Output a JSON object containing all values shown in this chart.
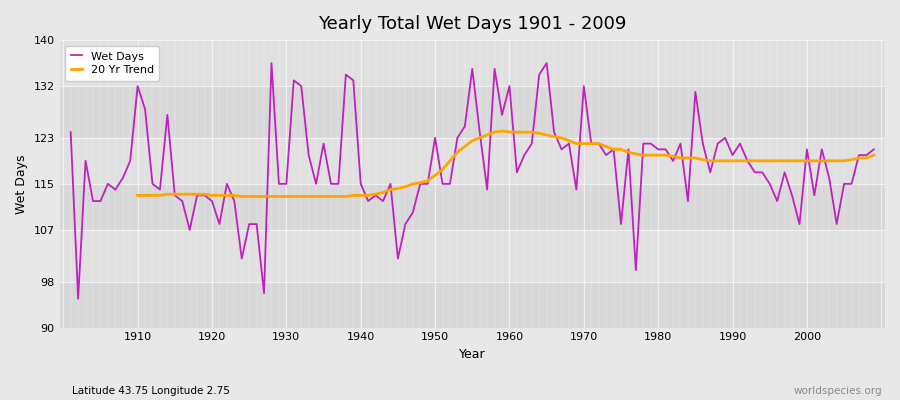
{
  "title": "Yearly Total Wet Days 1901 - 2009",
  "xlabel": "Year",
  "ylabel": "Wet Days",
  "subtitle": "Latitude 43.75 Longitude 2.75",
  "watermark": "worldspecies.org",
  "ylim": [
    90,
    140
  ],
  "yticks": [
    90,
    98,
    107,
    115,
    123,
    132,
    140
  ],
  "start_year": 1901,
  "wet_days_color": "#c020c0",
  "trend_color": "#FFA500",
  "bg_color": "#e8e8e8",
  "plot_bg_color": "#d8d8d8",
  "band_colors": [
    "#d8d8d8",
    "#e0e0e0"
  ],
  "wet_days": [
    124,
    95,
    119,
    112,
    112,
    115,
    114,
    116,
    119,
    132,
    128,
    115,
    114,
    127,
    113,
    112,
    107,
    113,
    113,
    112,
    108,
    115,
    112,
    102,
    108,
    108,
    96,
    136,
    115,
    115,
    133,
    132,
    120,
    115,
    122,
    115,
    115,
    134,
    133,
    115,
    112,
    113,
    112,
    115,
    102,
    108,
    110,
    115,
    115,
    123,
    115,
    115,
    123,
    125,
    135,
    124,
    114,
    135,
    127,
    132,
    117,
    120,
    122,
    134,
    136,
    124,
    121,
    122,
    114,
    132,
    122,
    122,
    120,
    121,
    108,
    121,
    100,
    122,
    122,
    121,
    121,
    119,
    122,
    112,
    131,
    122,
    117,
    122,
    123,
    120,
    122,
    119,
    117,
    117,
    115,
    112,
    117,
    113,
    108,
    121,
    113,
    121,
    116,
    108,
    115,
    115,
    120,
    120,
    121
  ],
  "trend": [
    null,
    null,
    null,
    null,
    null,
    null,
    null,
    null,
    null,
    113.0,
    113.0,
    113.0,
    113.0,
    113.2,
    113.2,
    113.2,
    113.2,
    113.2,
    113.2,
    113.0,
    113.0,
    113.0,
    113.0,
    112.8,
    112.8,
    112.8,
    112.8,
    112.8,
    112.8,
    112.8,
    112.8,
    112.8,
    112.8,
    112.8,
    112.8,
    112.8,
    112.8,
    112.8,
    113.0,
    113.0,
    113.0,
    113.2,
    113.5,
    114.0,
    114.2,
    114.5,
    115.0,
    115.2,
    115.5,
    116.5,
    117.5,
    119.0,
    120.5,
    121.5,
    122.5,
    123.0,
    123.5,
    124.0,
    124.2,
    124.0,
    124.0,
    124.0,
    124.0,
    123.8,
    123.5,
    123.2,
    123.0,
    122.5,
    122.0,
    122.0,
    122.0,
    122.0,
    121.5,
    121.0,
    121.0,
    120.5,
    120.2,
    120.0,
    120.0,
    120.0,
    120.0,
    119.8,
    119.5,
    119.5,
    119.5,
    119.2,
    119.0,
    119.0,
    119.0,
    119.0,
    119.0,
    119.0,
    119.0,
    119.0,
    119.0,
    119.0,
    119.0,
    119.0,
    119.0,
    119.0,
    119.0,
    119.0,
    119.0,
    119.0,
    119.0,
    119.2,
    119.5,
    119.5,
    120.0
  ]
}
